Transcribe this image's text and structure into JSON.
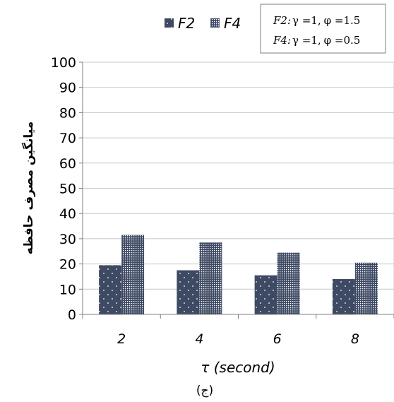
{
  "chart_data": {
    "type": "bar",
    "categories": [
      "2",
      "4",
      "6",
      "8"
    ],
    "series": [
      {
        "name": "F2",
        "values": [
          19.5,
          17.5,
          15.5,
          14
        ],
        "color": "#3e4a63",
        "pattern": "dots"
      },
      {
        "name": "F4",
        "values": [
          31.5,
          28.5,
          24.5,
          20.5
        ],
        "color": "#3e4a63",
        "pattern": "grid"
      }
    ],
    "xlabel": "τ (second)",
    "ylabel": "میانگین مصرف حافظه",
    "ylim": [
      0,
      100
    ],
    "yticks": [
      0,
      10,
      20,
      30,
      40,
      50,
      60,
      70,
      80,
      90,
      100
    ],
    "grid": true,
    "legend_position": "top",
    "annotation": {
      "lines": [
        {
          "name": "F2:",
          "gamma": "γ =1,",
          "phi": "φ =1.5"
        },
        {
          "name": "F4:",
          "gamma": "γ =1,",
          "phi": "φ =0.5"
        }
      ]
    },
    "caption": "(ج)"
  }
}
